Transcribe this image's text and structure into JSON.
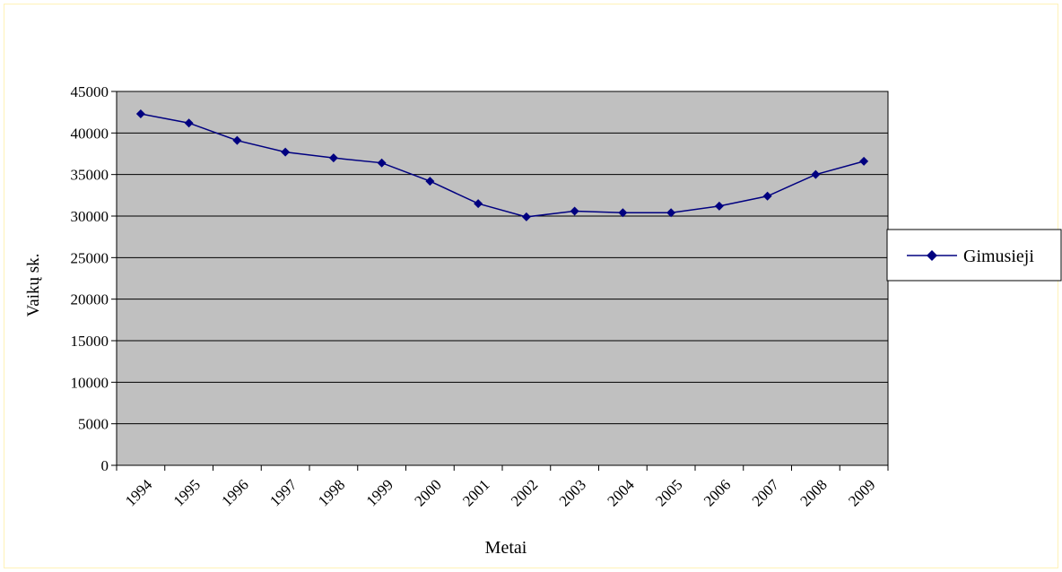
{
  "chart_data": {
    "type": "line",
    "title": "",
    "xlabel": "Metai",
    "ylabel": "Vaikų sk.",
    "categories": [
      "1994",
      "1995",
      "1996",
      "1997",
      "1998",
      "1999",
      "2000",
      "2001",
      "2002",
      "2003",
      "2004",
      "2005",
      "2006",
      "2007",
      "2008",
      "2009"
    ],
    "series": [
      {
        "name": "Gimusieji",
        "color": "#000080",
        "values": [
          42300,
          41200,
          39100,
          37700,
          37000,
          36400,
          34200,
          31500,
          29900,
          30600,
          30400,
          30400,
          31200,
          32400,
          35000,
          36600
        ]
      }
    ],
    "ylim": [
      0,
      45000
    ],
    "yticks": [
      0,
      5000,
      10000,
      15000,
      20000,
      25000,
      30000,
      35000,
      40000,
      45000
    ],
    "grid": true,
    "plot_background": "#c0c0c0",
    "legend": "right"
  }
}
